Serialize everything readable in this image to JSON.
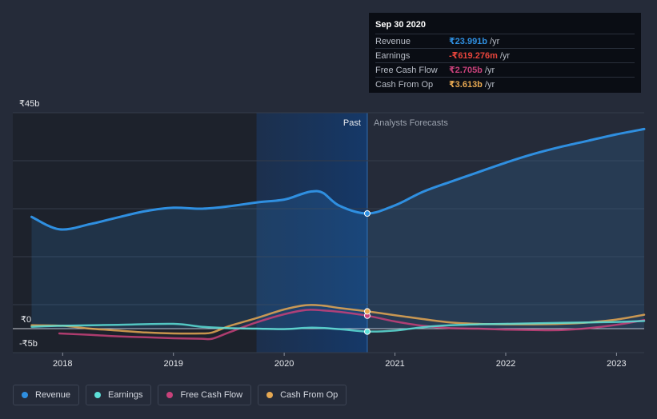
{
  "tooltip": {
    "date": "Sep 30 2020",
    "rows": [
      {
        "label": "Revenue",
        "value": "₹23.991b",
        "unit": "/yr",
        "color": "#2f8fe0"
      },
      {
        "label": "Earnings",
        "value": "-₹619.276m",
        "unit": "/yr",
        "color": "#e8453c"
      },
      {
        "label": "Free Cash Flow",
        "value": "₹2.705b",
        "unit": "/yr",
        "color": "#c8417a"
      },
      {
        "label": "Cash From Op",
        "value": "₹3.613b",
        "unit": "/yr",
        "color": "#e6a852"
      }
    ]
  },
  "legend": [
    {
      "label": "Revenue",
      "color": "#2f8fe0"
    },
    {
      "label": "Earnings",
      "color": "#5de0d8"
    },
    {
      "label": "Free Cash Flow",
      "color": "#c8417a"
    },
    {
      "label": "Cash From Op",
      "color": "#e6a852"
    }
  ],
  "chart_data": {
    "type": "line",
    "y_unit": "₹ billions",
    "ylim": [
      -5,
      45
    ],
    "y_tick_labels": [
      {
        "value": 45,
        "label": "₹45b"
      },
      {
        "value": 0,
        "label": "₹0"
      },
      {
        "value": -5,
        "label": "-₹5b"
      }
    ],
    "xlim": [
      2017.55,
      2023.25
    ],
    "x_ticks": [
      2018,
      2019,
      2020,
      2021,
      2022,
      2023
    ],
    "past_label": "Past",
    "forecast_label": "Analysts Forecasts",
    "past_region_start": 2019.75,
    "divider_x": 2020.75,
    "series": [
      {
        "name": "Revenue",
        "color": "#2f8fe0",
        "filled": true,
        "x": [
          2017.72,
          2017.97,
          2018.25,
          2018.5,
          2018.75,
          2019.0,
          2019.25,
          2019.5,
          2019.75,
          2020.0,
          2020.15,
          2020.25,
          2020.35,
          2020.5,
          2020.75,
          2021.0,
          2021.25,
          2021.5,
          2021.75,
          2022.0,
          2022.25,
          2022.5,
          2022.75,
          2023.0,
          2023.25
        ],
        "y": [
          23.3,
          20.7,
          21.8,
          23.2,
          24.5,
          25.2,
          25.0,
          25.5,
          26.3,
          26.9,
          28.0,
          28.6,
          28.3,
          25.6,
          24.0,
          25.7,
          28.5,
          30.6,
          32.6,
          34.6,
          36.4,
          37.9,
          39.2,
          40.5,
          41.6
        ]
      },
      {
        "name": "Earnings",
        "color": "#5de0d8",
        "filled": false,
        "x": [
          2017.72,
          2018.0,
          2018.5,
          2019.0,
          2019.25,
          2019.5,
          2019.75,
          2020.0,
          2020.25,
          2020.5,
          2020.75,
          2021.0,
          2021.25,
          2021.5,
          2021.75,
          2022.0,
          2022.25,
          2022.5,
          2022.75,
          2023.0,
          2023.25
        ],
        "y": [
          0.4,
          0.6,
          0.8,
          1.0,
          0.4,
          0.1,
          0.0,
          -0.1,
          0.2,
          -0.1,
          -0.6,
          -0.4,
          0.3,
          0.7,
          0.9,
          1.0,
          1.1,
          1.2,
          1.3,
          1.4,
          1.6
        ]
      },
      {
        "name": "Free Cash Flow",
        "color": "#c8417a",
        "filled": false,
        "x": [
          2017.97,
          2018.25,
          2018.5,
          2018.75,
          2019.0,
          2019.25,
          2019.35,
          2019.5,
          2019.75,
          2020.0,
          2020.2,
          2020.35,
          2020.5,
          2020.75,
          2021.0,
          2021.25,
          2021.5,
          2021.75,
          2022.0,
          2022.25,
          2022.5,
          2022.75,
          2023.0,
          2023.25
        ],
        "y": [
          -1.0,
          -1.3,
          -1.6,
          -1.8,
          -2.0,
          -2.1,
          -2.1,
          -0.8,
          1.3,
          3.0,
          3.9,
          3.8,
          3.5,
          2.7,
          1.5,
          0.6,
          0.1,
          0.0,
          -0.2,
          -0.3,
          -0.3,
          0.1,
          0.8,
          1.8
        ]
      },
      {
        "name": "Cash From Op",
        "color": "#e6a852",
        "filled": false,
        "x": [
          2017.72,
          2018.0,
          2018.25,
          2018.5,
          2018.75,
          2019.0,
          2019.25,
          2019.35,
          2019.5,
          2019.75,
          2020.0,
          2020.2,
          2020.35,
          2020.5,
          2020.75,
          2021.0,
          2021.25,
          2021.5,
          2021.75,
          2022.0,
          2022.25,
          2022.5,
          2022.75,
          2023.0,
          2023.25
        ],
        "y": [
          0.7,
          0.6,
          0.0,
          -0.4,
          -0.8,
          -1.0,
          -1.0,
          -0.8,
          0.5,
          2.2,
          4.0,
          4.9,
          4.8,
          4.3,
          3.6,
          2.8,
          2.0,
          1.3,
          1.0,
          0.9,
          0.9,
          1.0,
          1.3,
          1.9,
          2.9
        ]
      }
    ],
    "highlight_points": [
      {
        "series": "Revenue",
        "x": 2020.75,
        "y": 24.0
      },
      {
        "series": "Earnings",
        "x": 2020.75,
        "y": -0.62
      },
      {
        "series": "Free Cash Flow",
        "x": 2020.75,
        "y": 2.7
      },
      {
        "series": "Cash From Op",
        "x": 2020.75,
        "y": 3.6
      }
    ]
  }
}
